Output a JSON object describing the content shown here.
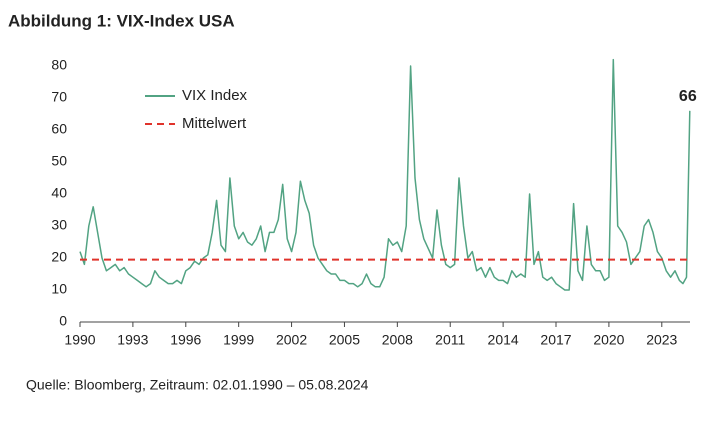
{
  "chart_data": {
    "type": "line",
    "title": "Abbildung 1: VIX-Index USA",
    "source": "Quelle: Bloomberg, Zeitraum: 02.01.1990 – 05.08.2024",
    "annotation": "66",
    "mean": {
      "name": "Mittelwert",
      "value": 19.5,
      "color": "#e0332b"
    },
    "x": [
      1990,
      1990.25,
      1990.5,
      1990.75,
      1991,
      1991.25,
      1991.5,
      1991.75,
      1992,
      1992.25,
      1992.5,
      1992.75,
      1993,
      1993.25,
      1993.5,
      1993.75,
      1994,
      1994.25,
      1994.5,
      1994.75,
      1995,
      1995.25,
      1995.5,
      1995.75,
      1996,
      1996.25,
      1996.5,
      1996.75,
      1997,
      1997.25,
      1997.5,
      1997.75,
      1998,
      1998.25,
      1998.5,
      1998.75,
      1999,
      1999.25,
      1999.5,
      1999.75,
      2000,
      2000.25,
      2000.5,
      2000.75,
      2001,
      2001.25,
      2001.5,
      2001.75,
      2002,
      2002.25,
      2002.5,
      2002.75,
      2003,
      2003.25,
      2003.5,
      2003.75,
      2004,
      2004.25,
      2004.5,
      2004.75,
      2005,
      2005.25,
      2005.5,
      2005.75,
      2006,
      2006.25,
      2006.5,
      2006.75,
      2007,
      2007.25,
      2007.5,
      2007.75,
      2008,
      2008.25,
      2008.5,
      2008.75,
      2009,
      2009.25,
      2009.5,
      2009.75,
      2010,
      2010.25,
      2010.5,
      2010.75,
      2011,
      2011.25,
      2011.5,
      2011.75,
      2012,
      2012.25,
      2012.5,
      2012.75,
      2013,
      2013.25,
      2013.5,
      2013.75,
      2014,
      2014.25,
      2014.5,
      2014.75,
      2015,
      2015.25,
      2015.5,
      2015.75,
      2016,
      2016.25,
      2016.5,
      2016.75,
      2017,
      2017.25,
      2017.5,
      2017.75,
      2018,
      2018.25,
      2018.5,
      2018.75,
      2019,
      2019.25,
      2019.5,
      2019.75,
      2020,
      2020.25,
      2020.5,
      2020.75,
      2021,
      2021.25,
      2021.5,
      2021.75,
      2022,
      2022.25,
      2022.5,
      2022.75,
      2023,
      2023.25,
      2023.5,
      2023.75,
      2024,
      2024.2,
      2024.4,
      2024.59
    ],
    "series": [
      {
        "name": "VIX Index",
        "color": "#52a383",
        "values": [
          22,
          18,
          30,
          36,
          28,
          20,
          16,
          17,
          18,
          16,
          17,
          15,
          14,
          13,
          12,
          11,
          12,
          16,
          14,
          13,
          12,
          12,
          13,
          12,
          16,
          17,
          19,
          18,
          20,
          21,
          28,
          38,
          24,
          22,
          45,
          30,
          26,
          28,
          25,
          24,
          26,
          30,
          22,
          28,
          28,
          32,
          43,
          26,
          22,
          28,
          44,
          38,
          34,
          24,
          20,
          18,
          16,
          15,
          15,
          13,
          13,
          12,
          12,
          11,
          12,
          15,
          12,
          11,
          11,
          14,
          26,
          24,
          25,
          22,
          30,
          80,
          45,
          32,
          26,
          23,
          20,
          35,
          24,
          18,
          17,
          18,
          45,
          30,
          20,
          22,
          16,
          17,
          14,
          17,
          14,
          13,
          13,
          12,
          16,
          14,
          15,
          14,
          40,
          18,
          22,
          14,
          13,
          14,
          12,
          11,
          10,
          10,
          37,
          16,
          13,
          30,
          18,
          16,
          16,
          13,
          14,
          82,
          30,
          28,
          25,
          18,
          20,
          22,
          30,
          32,
          28,
          22,
          20,
          16,
          14,
          16,
          13,
          12,
          14,
          66
        ]
      }
    ],
    "xlim": [
      1990,
      2024.6
    ],
    "ylim": [
      0,
      85
    ],
    "xticks": [
      1990,
      1993,
      1996,
      1999,
      2002,
      2005,
      2008,
      2011,
      2014,
      2017,
      2020,
      2023
    ],
    "yticks": [
      0,
      10,
      20,
      30,
      40,
      50,
      60,
      70,
      80
    ]
  }
}
